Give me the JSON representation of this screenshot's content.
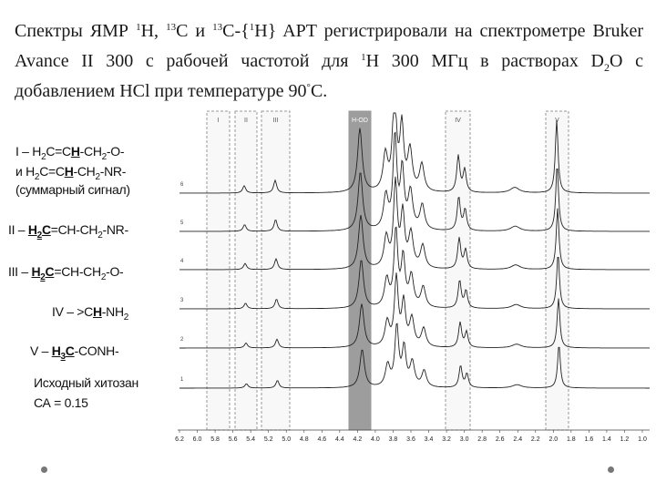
{
  "slide": {
    "paragraph": [
      {
        "t": "Спектры ЯМР "
      },
      {
        "sup": "1"
      },
      {
        "t": "H, "
      },
      {
        "sup": "13"
      },
      {
        "t": "C и "
      },
      {
        "sup": "13"
      },
      {
        "t": "C-{"
      },
      {
        "sup": "1"
      },
      {
        "t": "H} APT регистрировали на спектрометре Bruker Avance II 300 с рабочей частотой для "
      },
      {
        "sup": "1"
      },
      {
        "t": "H 300 МГц в растворах D"
      },
      {
        "sub": "2"
      },
      {
        "t": "O с добавлением HCl при температуре 90"
      },
      {
        "sup": "°"
      },
      {
        "t": "C."
      }
    ],
    "figure": {
      "region_labels": [
        "I",
        "II",
        "III",
        "H-OD",
        "IV",
        "V"
      ],
      "legend": [
        [
          {
            "t": "I – H"
          },
          {
            "sub": "2"
          },
          {
            "t": "C=C"
          },
          {
            "u": "H"
          },
          {
            "t": "-CH"
          },
          {
            "sub": "2"
          },
          {
            "t": "-O-"
          }
        ],
        [
          {
            "t": "и H"
          },
          {
            "sub": "2"
          },
          {
            "t": "C=C"
          },
          {
            "u": "H"
          },
          {
            "t": "-CH"
          },
          {
            "sub": "2"
          },
          {
            "t": "-NR-"
          }
        ],
        [
          {
            "t": "(суммарный сигнал)"
          }
        ],
        [
          {
            "t": "II – "
          },
          {
            "u": "H"
          },
          {
            "usub": "2"
          },
          {
            "u": "C"
          },
          {
            "t": "=CH-CH"
          },
          {
            "sub": "2"
          },
          {
            "t": "-NR-"
          }
        ],
        [
          {
            "t": "III – "
          },
          {
            "u": "H"
          },
          {
            "usub": "2"
          },
          {
            "u": "C"
          },
          {
            "t": "=CH-CH"
          },
          {
            "sub": "2"
          },
          {
            "t": "-O-"
          }
        ],
        [
          {
            "t": "IV – >C"
          },
          {
            "u": "H"
          },
          {
            "t": "-NH"
          },
          {
            "sub": "2"
          }
        ],
        [
          {
            "t": "V – "
          },
          {
            "u": "H"
          },
          {
            "usub": "3"
          },
          {
            "u": "C"
          },
          {
            "t": "-CONH-"
          }
        ],
        [
          {
            "t": "Исходный хитозан"
          }
        ],
        [
          {
            "t": "СА = 0.15"
          }
        ]
      ],
      "trace_labels": [
        "6",
        "5",
        "4",
        "3",
        "2",
        "1"
      ],
      "x_axis_labels": [
        "6.2",
        "6.0",
        "5.8",
        "5.6",
        "5.4",
        "5.2",
        "5.0",
        "4.8",
        "4.6",
        "4.4",
        "4.2",
        "4.0",
        "3.8",
        "3.6",
        "3.4",
        "3.2",
        "3.0",
        "2.8",
        "2.6",
        "2.4",
        "2.2",
        "2.0",
        "1.8",
        "1.6",
        "1.4",
        "1.2",
        "1.0"
      ]
    }
  }
}
